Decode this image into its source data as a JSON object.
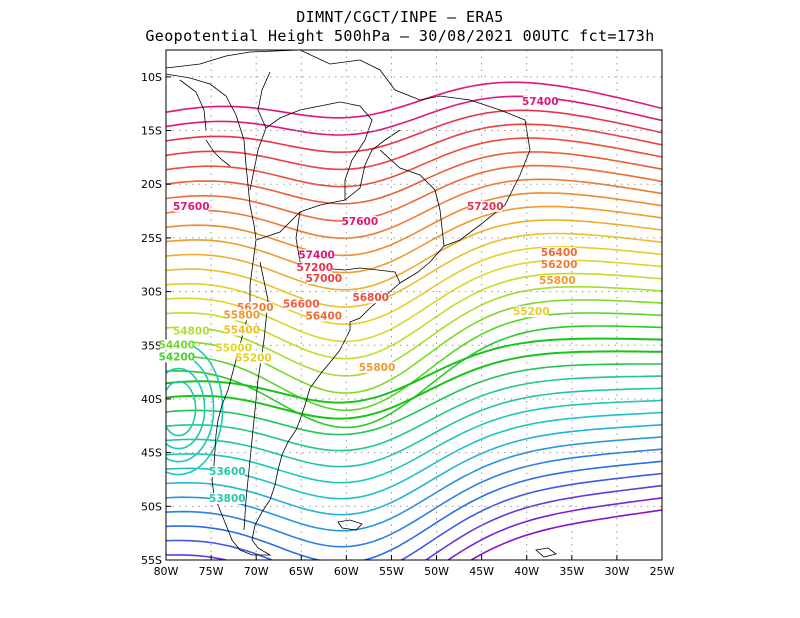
{
  "header": {
    "title_line1": "DIMNT/CGCT/INPE –  ERA5",
    "title_line2": "Geopotential Height 500hPa –  30/08/2021 00UTC fct=173h"
  },
  "map": {
    "variable": "Geopotential Height 500hPa",
    "lon_range": [
      -80,
      -25
    ],
    "lat_range": [
      -55,
      -7.5
    ],
    "grid": true,
    "y_ticks": [
      "10S",
      "15S",
      "20S",
      "25S",
      "30S",
      "35S",
      "40S",
      "45S",
      "50S",
      "55S"
    ],
    "x_ticks": [
      "80W",
      "75W",
      "70W",
      "65W",
      "60W",
      "55W",
      "50W",
      "45W",
      "40W",
      "35W",
      "30W",
      "25W"
    ],
    "contour_labels": [
      {
        "text": "57400",
        "lon": -38.5,
        "lat": -12.6,
        "color": "#e2157a"
      },
      {
        "text": "57600",
        "lon": -77.2,
        "lat": -22.4,
        "color": "#e2157a"
      },
      {
        "text": "57600",
        "lon": -58.5,
        "lat": -23.8,
        "color": "#e2157a"
      },
      {
        "text": "57200",
        "lon": -44.6,
        "lat": -22.4,
        "color": "#e8304f"
      },
      {
        "text": "57400",
        "lon": -63.3,
        "lat": -26.9,
        "color": "#e2157a"
      },
      {
        "text": "57200",
        "lon": -63.5,
        "lat": -28.1,
        "color": "#e8304f"
      },
      {
        "text": "57000",
        "lon": -62.5,
        "lat": -29.1,
        "color": "#ec3f3f"
      },
      {
        "text": "56800",
        "lon": -57.3,
        "lat": -30.9,
        "color": "#ef4d3a"
      },
      {
        "text": "56600",
        "lon": -65.0,
        "lat": -31.5,
        "color": "#ef5b38"
      },
      {
        "text": "56400",
        "lon": -62.5,
        "lat": -32.6,
        "color": "#f06a34"
      },
      {
        "text": "56200",
        "lon": -70.1,
        "lat": -31.8,
        "color": "#f07a30"
      },
      {
        "text": "55800",
        "lon": -71.6,
        "lat": -32.5,
        "color": "#f19a2c"
      },
      {
        "text": "55400",
        "lon": -71.6,
        "lat": -33.9,
        "color": "#e9c12a"
      },
      {
        "text": "55000",
        "lon": -72.5,
        "lat": -35.6,
        "color": "#dcd72a"
      },
      {
        "text": "55200",
        "lon": -70.3,
        "lat": -36.5,
        "color": "#e6cd2a"
      },
      {
        "text": "54800",
        "lon": -77.2,
        "lat": -34.0,
        "color": "#b2e02c"
      },
      {
        "text": "54400",
        "lon": -78.8,
        "lat": -35.3,
        "color": "#6fd82a"
      },
      {
        "text": "54200",
        "lon": -78.8,
        "lat": -36.4,
        "color": "#48d22a"
      },
      {
        "text": "55800",
        "lon": -56.6,
        "lat": -37.4,
        "color": "#f19a2c"
      },
      {
        "text": "56400",
        "lon": -36.4,
        "lat": -26.7,
        "color": "#f06a34"
      },
      {
        "text": "56200",
        "lon": -36.4,
        "lat": -27.8,
        "color": "#f07a30"
      },
      {
        "text": "55800",
        "lon": -36.6,
        "lat": -29.3,
        "color": "#f19a2c"
      },
      {
        "text": "55200",
        "lon": -39.5,
        "lat": -32.2,
        "color": "#e6cd2a"
      },
      {
        "text": "53600",
        "lon": -73.2,
        "lat": -47.1,
        "color": "#25c7a0"
      },
      {
        "text": "53800",
        "lon": -73.2,
        "lat": -49.6,
        "color": "#22c9b0"
      }
    ],
    "colors": {
      "high": "#e2157a",
      "mid": "#f19a2c",
      "low_green": "#19c419",
      "teal": "#1ec8b4",
      "blue": "#2a6ee8",
      "purple": "#8a10d2",
      "coast": "#000000",
      "grid": "#9a9a9a"
    }
  }
}
